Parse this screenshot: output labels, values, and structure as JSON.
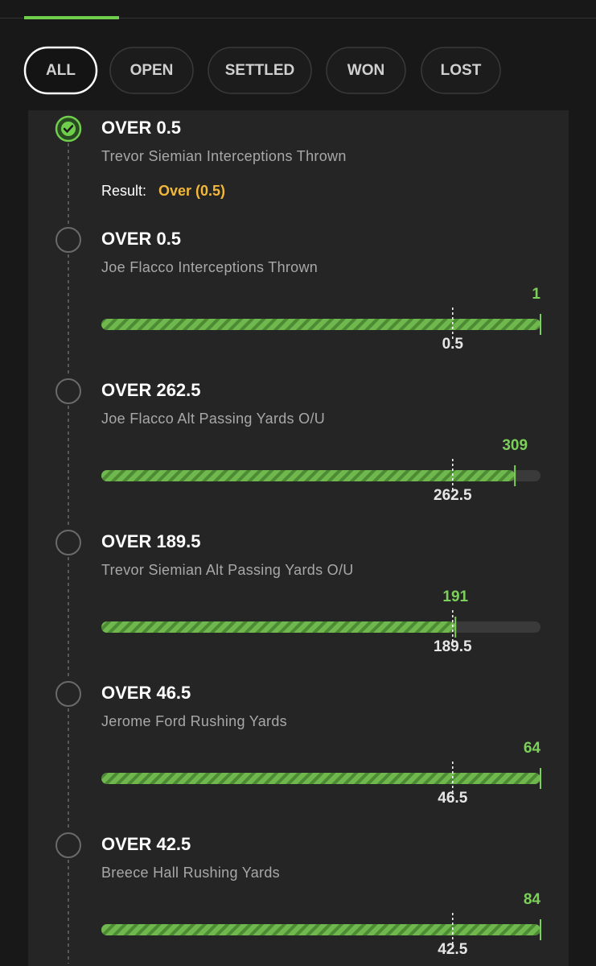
{
  "tabs": [
    "ALL",
    "OPEN",
    "SETTLED",
    "WON",
    "LOST"
  ],
  "legs": [
    {
      "title": "OVER 0.5",
      "subtitle": "Trevor Siemian Interceptions Thrown",
      "result_label": "Result:",
      "result": "Over (0.5)"
    },
    {
      "title": "OVER 0.5",
      "subtitle": "Joe Flacco Interceptions Thrown",
      "current": 1,
      "line": 0.5
    },
    {
      "title": "OVER 262.5",
      "subtitle": "Joe Flacco Alt Passing Yards O/U",
      "current": 309,
      "line": 262.5
    },
    {
      "title": "OVER 189.5",
      "subtitle": "Trevor Siemian Alt Passing Yards O/U",
      "current": 191,
      "line": 189.5
    },
    {
      "title": "OVER 46.5",
      "subtitle": "Jerome Ford Rushing Yards",
      "current": 64,
      "line": 46.5
    },
    {
      "title": "OVER 42.5",
      "subtitle": "Breece Hall Rushing Yards",
      "current": 84,
      "line": 42.5
    }
  ]
}
